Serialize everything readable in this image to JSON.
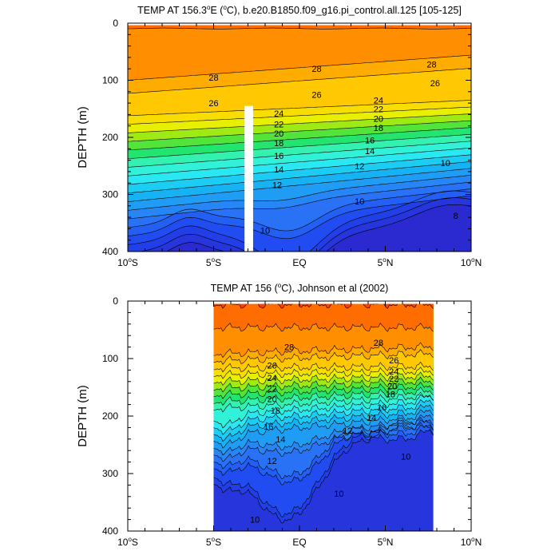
{
  "chart_data": [
    {
      "type": "contour",
      "title": "TEMP AT 156.3",
      "title_unit": "E (",
      "title_tail": "C), b.e20.B1850.f09_g16.pi_control.all.125 [105-125]",
      "ylabel": "DEPTH (m)",
      "xlim": [
        -10,
        10
      ],
      "ylim": [
        0,
        400
      ],
      "y_inverted": true,
      "x_ticks": [
        -10,
        -5,
        0,
        5,
        10
      ],
      "x_tick_labels": [
        "10",
        "5",
        "EQ",
        "5",
        "10"
      ],
      "x_tick_suffix": [
        "S",
        "S",
        "",
        "N",
        "N"
      ],
      "y_ticks": [
        0,
        100,
        200,
        300,
        400
      ],
      "y_tick_labels": [
        "0",
        "100",
        "200",
        "300",
        "400"
      ],
      "data_extent_x": [
        -10,
        10
      ],
      "data_extent_y": [
        4,
        400
      ],
      "masked_column_x": [
        -3.2,
        -2.7
      ],
      "masked_column_ytop": 145,
      "contour_interval": 1,
      "contour_labels": [
        {
          "text": "28",
          "x": -5.0,
          "y": 95
        },
        {
          "text": "28",
          "x": 1.0,
          "y": 80
        },
        {
          "text": "28",
          "x": 7.7,
          "y": 72
        },
        {
          "text": "26",
          "x": -5.0,
          "y": 140
        },
        {
          "text": "26",
          "x": 1.0,
          "y": 125
        },
        {
          "text": "26",
          "x": 7.9,
          "y": 105
        },
        {
          "text": "24",
          "x": -1.2,
          "y": 158
        },
        {
          "text": "24",
          "x": 4.6,
          "y": 135
        },
        {
          "text": "22",
          "x": -1.2,
          "y": 177
        },
        {
          "text": "22",
          "x": 4.6,
          "y": 150
        },
        {
          "text": "20",
          "x": -1.2,
          "y": 193
        },
        {
          "text": "20",
          "x": 4.6,
          "y": 167
        },
        {
          "text": "18",
          "x": -1.2,
          "y": 210
        },
        {
          "text": "18",
          "x": 4.6,
          "y": 183
        },
        {
          "text": "16",
          "x": -1.2,
          "y": 232
        },
        {
          "text": "16",
          "x": 4.1,
          "y": 205
        },
        {
          "text": "14",
          "x": -1.2,
          "y": 256
        },
        {
          "text": "14",
          "x": 4.1,
          "y": 224
        },
        {
          "text": "12",
          "x": -1.3,
          "y": 283
        },
        {
          "text": "12",
          "x": 3.5,
          "y": 250
        },
        {
          "text": "10",
          "x": -2.0,
          "y": 363
        },
        {
          "text": "10",
          "x": 3.5,
          "y": 312
        },
        {
          "text": "10",
          "x": 8.5,
          "y": 245
        },
        {
          "text": "8",
          "x": 9.1,
          "y": 337
        }
      ]
    },
    {
      "type": "contour",
      "title": "TEMP AT 156 (",
      "title_tail": "C), Johnson et al (2002)",
      "ylabel": "DEPTH (m)",
      "xlim": [
        -10,
        10
      ],
      "ylim": [
        0,
        400
      ],
      "y_inverted": true,
      "x_ticks": [
        -10,
        -5,
        0,
        5,
        10
      ],
      "x_tick_labels": [
        "10",
        "5",
        "EQ",
        "5",
        "10"
      ],
      "x_tick_suffix": [
        "S",
        "S",
        "",
        "N",
        "N"
      ],
      "y_ticks": [
        0,
        100,
        200,
        300,
        400
      ],
      "y_tick_labels": [
        "0",
        "100",
        "200",
        "300",
        "400"
      ],
      "data_extent_x": [
        -5,
        7.8
      ],
      "data_extent_y": [
        5,
        400
      ],
      "contour_interval": 1,
      "contour_labels": [
        {
          "text": "28",
          "x": -0.6,
          "y": 80
        },
        {
          "text": "28",
          "x": 4.6,
          "y": 72
        },
        {
          "text": "26",
          "x": -1.6,
          "y": 112
        },
        {
          "text": "26",
          "x": 5.5,
          "y": 103
        },
        {
          "text": "24",
          "x": -1.6,
          "y": 133
        },
        {
          "text": "24",
          "x": 5.5,
          "y": 122
        },
        {
          "text": "22",
          "x": -1.6,
          "y": 152
        },
        {
          "text": "22",
          "x": 5.5,
          "y": 135
        },
        {
          "text": "20",
          "x": -1.6,
          "y": 170
        },
        {
          "text": "20",
          "x": 5.4,
          "y": 148
        },
        {
          "text": "18",
          "x": -1.4,
          "y": 190
        },
        {
          "text": "18",
          "x": 5.3,
          "y": 162
        },
        {
          "text": "16",
          "x": -1.8,
          "y": 218
        },
        {
          "text": "16",
          "x": 4.8,
          "y": 185
        },
        {
          "text": "14",
          "x": -1.1,
          "y": 240
        },
        {
          "text": "14",
          "x": 4.2,
          "y": 203
        },
        {
          "text": "12",
          "x": -1.6,
          "y": 278
        },
        {
          "text": "12",
          "x": 2.8,
          "y": 225
        },
        {
          "text": "10",
          "x": 2.3,
          "y": 335
        },
        {
          "text": "10",
          "x": -2.6,
          "y": 380
        },
        {
          "text": "10",
          "x": 6.2,
          "y": 270
        }
      ]
    }
  ]
}
